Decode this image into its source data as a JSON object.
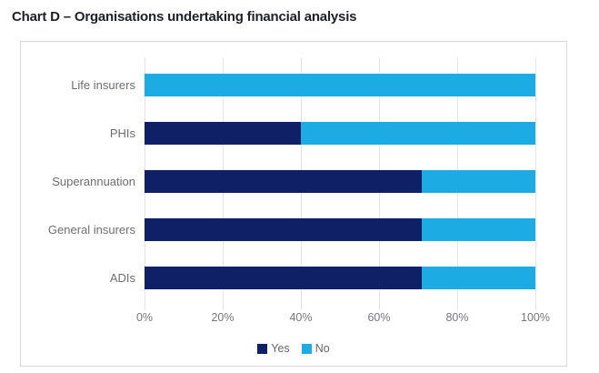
{
  "page": {
    "title": "Chart D – Organisations undertaking financial analysis"
  },
  "colors": {
    "yes": "#0f2066",
    "no": "#1cace3",
    "grid": "#e4e4e6",
    "box_border": "#d9d9d9",
    "label_text": "#6d6d73",
    "title_text": "#1e1f28"
  },
  "chart_data": {
    "type": "bar",
    "orientation": "horizontal",
    "stacked": true,
    "unit": "percent",
    "title": "Chart D – Organisations undertaking financial analysis",
    "categories": [
      "Life insurers",
      "PHIs",
      "Superannuation",
      "General insurers",
      "ADIs"
    ],
    "series": [
      {
        "name": "Yes",
        "color": "#0f2066",
        "values": [
          0,
          40,
          71,
          71,
          71
        ]
      },
      {
        "name": "No",
        "color": "#1cace3",
        "values": [
          100,
          60,
          29,
          29,
          29
        ]
      }
    ],
    "xticks": [
      "0%",
      "20%",
      "40%",
      "60%",
      "80%",
      "100%"
    ],
    "xlim": [
      0,
      100
    ],
    "grid": true,
    "legend_position": "bottom"
  }
}
